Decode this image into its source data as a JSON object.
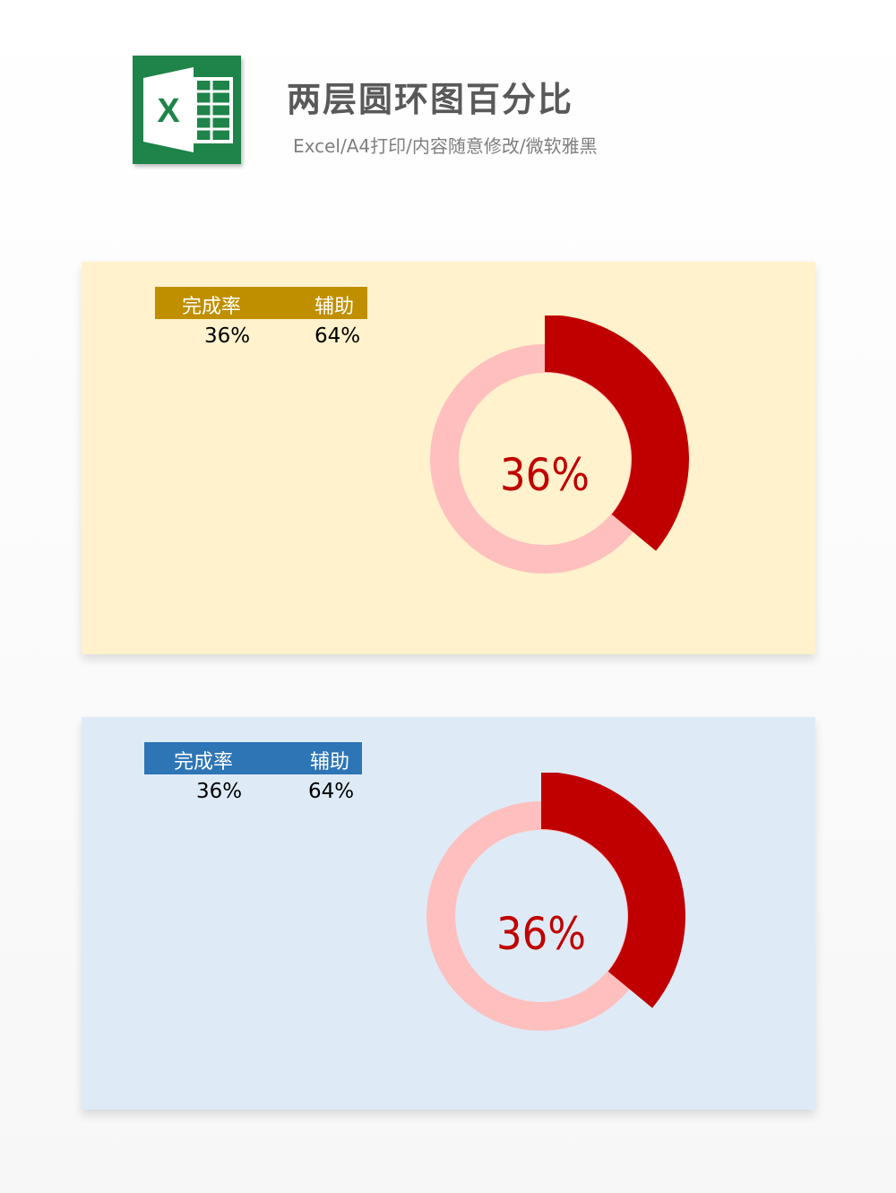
{
  "header": {
    "logo_letter": "X",
    "title": "两层圆环图百分比",
    "subtitle": "Excel/A4打印/内容随意修改/微软雅黑"
  },
  "colors": {
    "logo_green": "#1e8449",
    "panel1_bg": "#fff2cc",
    "panel1_header": "#bf8f00",
    "panel2_bg": "#deebf7",
    "panel2_header": "#2e75b6",
    "outer_arc": "#c00000",
    "inner_ring": "#ffbfbf"
  },
  "panels": [
    {
      "table": {
        "headers": [
          "完成率",
          "辅助"
        ],
        "values": [
          "36%",
          "64%"
        ]
      },
      "center_label": "36%"
    },
    {
      "table": {
        "headers": [
          "完成率",
          "辅助"
        ],
        "values": [
          "36%",
          "64%"
        ]
      },
      "center_label": "36%"
    }
  ],
  "chart_data": [
    {
      "type": "pie",
      "variant": "two-layer doughnut",
      "categories": [
        "完成率",
        "辅助"
      ],
      "values": [
        0.36,
        0.64
      ],
      "center_label": "36%"
    },
    {
      "type": "pie",
      "variant": "two-layer doughnut",
      "categories": [
        "完成率",
        "辅助"
      ],
      "values": [
        0.36,
        0.64
      ],
      "center_label": "36%"
    }
  ]
}
